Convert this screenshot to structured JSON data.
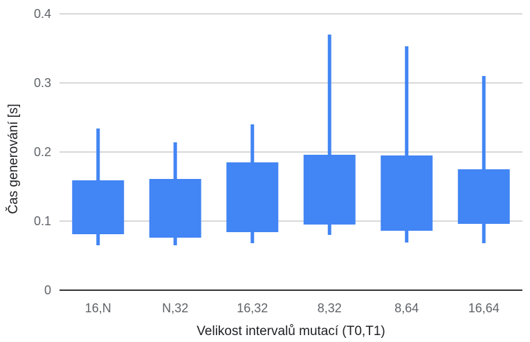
{
  "chart_data": {
    "type": "candlestick",
    "title": "",
    "xlabel": "Velikost intervalů mutací (T0,T1)",
    "ylabel": "Čas generování [s]",
    "ylim": [
      0,
      0.4
    ],
    "y_ticks": [
      0,
      0.1,
      0.2,
      0.3,
      0.4
    ],
    "y_tick_labels": [
      "0",
      "0.1",
      "0.2",
      "0.3",
      "0.4"
    ],
    "categories": [
      "16,N",
      "N,32",
      "16,32",
      "8,32",
      "8,64",
      "16,64"
    ],
    "series": [
      {
        "low": [
          0.065,
          0.065,
          0.068,
          0.08,
          0.069,
          0.068
        ],
        "open": [
          0.081,
          0.076,
          0.084,
          0.095,
          0.086,
          0.096
        ],
        "close": [
          0.159,
          0.161,
          0.185,
          0.196,
          0.195,
          0.175
        ],
        "high": [
          0.234,
          0.214,
          0.24,
          0.37,
          0.353,
          0.31
        ]
      }
    ],
    "colors": {
      "box": "#4285f4",
      "grid": "#cccccc",
      "baseline": "#333333",
      "tick_text": "#5f6368",
      "axis_title": "#202124"
    },
    "grid": true,
    "legend": "none"
  }
}
